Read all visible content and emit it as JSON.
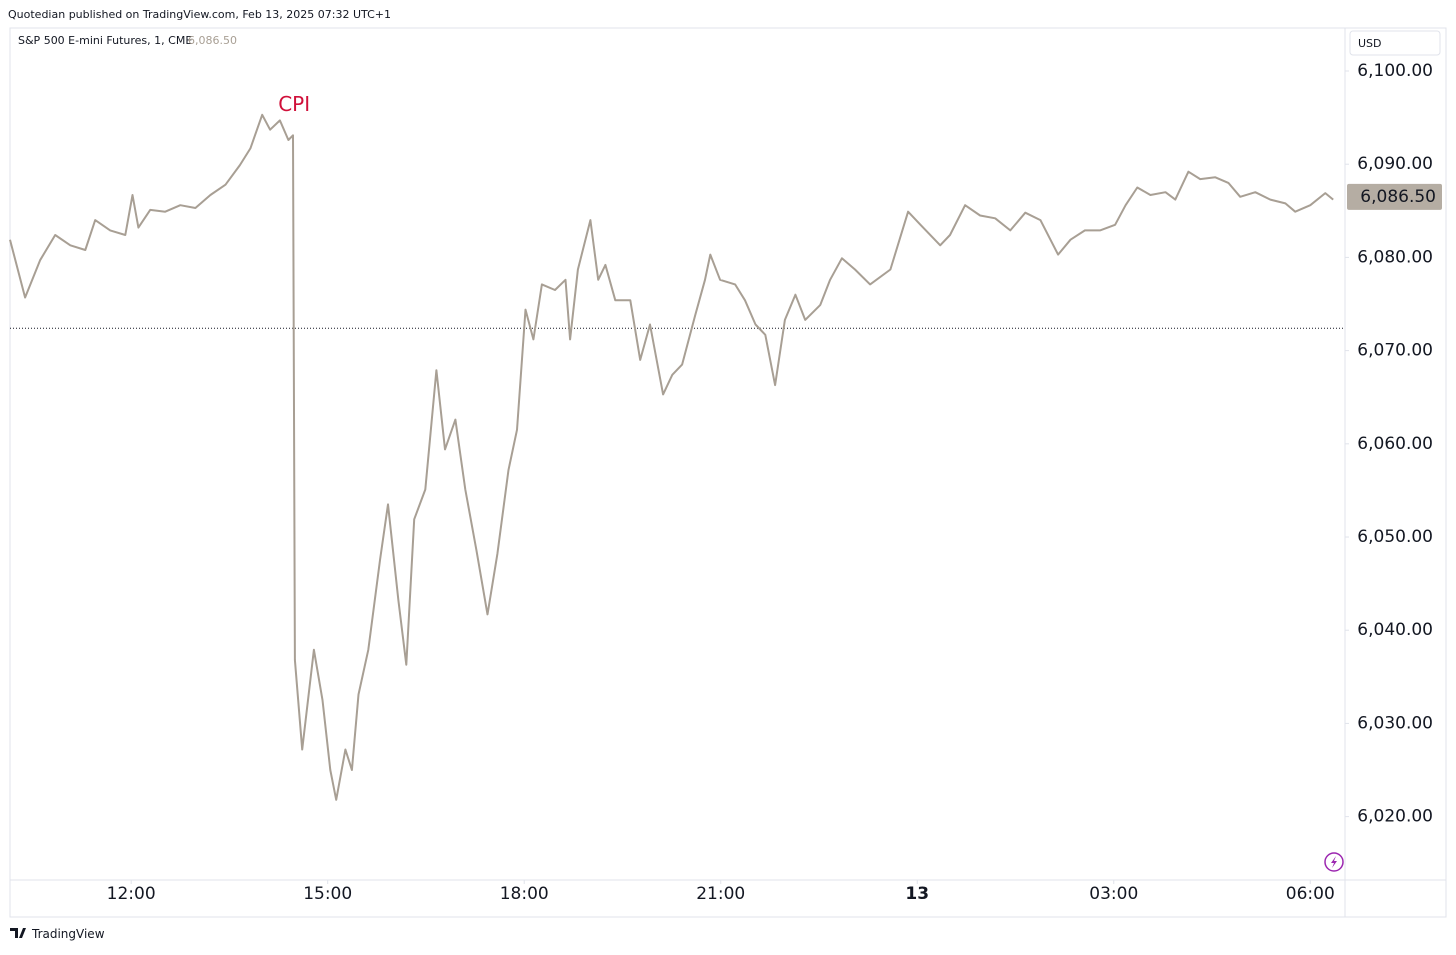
{
  "header": {
    "publisher": "Quotedian published on TradingView.com, Feb 13, 2025 07:32 UTC+1"
  },
  "footer": {
    "brand": "TradingView"
  },
  "chart_data": {
    "type": "line",
    "title": "S&P 500 E-mini Futures, 1, CME",
    "currency": "USD",
    "last_price": {
      "value": 6086.5,
      "label": "6,086.50"
    },
    "reference_line": 6072.4,
    "annotation": "CPI",
    "color": "#a89f94",
    "x": [
      10.15,
      10.38,
      10.61,
      10.84,
      11.07,
      11.3,
      11.45,
      11.68,
      11.91,
      12.02,
      12.11,
      12.29,
      12.52,
      12.75,
      12.98,
      13.21,
      13.44,
      13.66,
      13.82,
      14.0,
      14.12,
      14.27,
      14.4,
      14.47,
      14.5,
      14.61,
      14.79,
      14.92,
      15.04,
      15.13,
      15.27,
      15.37,
      15.47,
      15.62,
      15.8,
      15.92,
      16.08,
      16.2,
      16.32,
      16.49,
      16.66,
      16.79,
      16.95,
      17.1,
      17.27,
      17.44,
      17.59,
      17.76,
      17.89,
      18.02,
      18.14,
      18.27,
      18.47,
      18.63,
      18.7,
      18.82,
      19.01,
      19.13,
      19.24,
      19.39,
      19.62,
      19.77,
      19.92,
      20.12,
      20.26,
      20.41,
      20.61,
      20.76,
      20.84,
      20.99,
      21.22,
      21.37,
      21.53,
      21.68,
      21.83,
      21.98,
      22.14,
      22.29,
      22.52,
      22.67,
      22.85,
      23.05,
      23.28,
      23.59,
      23.86,
      24.05,
      24.35,
      24.5,
      24.73,
      24.96,
      25.19,
      25.42,
      25.65,
      25.88,
      26.15,
      26.34,
      26.56,
      26.79,
      27.02,
      27.18,
      27.36,
      27.56,
      27.79,
      27.94,
      28.14,
      28.32,
      28.55,
      28.75,
      28.93,
      29.16,
      29.39,
      29.62,
      29.77,
      30.0,
      30.23,
      30.35
    ],
    "values": [
      6081.9,
      6075.7,
      6079.7,
      6082.4,
      6081.3,
      6080.8,
      6084.0,
      6082.9,
      6082.4,
      6086.7,
      6083.2,
      6085.1,
      6084.9,
      6085.6,
      6085.3,
      6086.7,
      6087.8,
      6089.9,
      6091.7,
      6095.3,
      6093.7,
      6094.7,
      6092.6,
      6093.1,
      6036.8,
      6027.2,
      6037.9,
      6032.5,
      6025.0,
      6021.8,
      6027.2,
      6025.0,
      6033.1,
      6037.9,
      6047.6,
      6053.5,
      6043.2,
      6036.3,
      6051.9,
      6055.1,
      6067.9,
      6059.4,
      6062.6,
      6055.1,
      6048.6,
      6041.7,
      6048.2,
      6057.2,
      6061.5,
      6074.4,
      6071.2,
      6077.1,
      6076.5,
      6077.6,
      6071.2,
      6078.7,
      6084.0,
      6077.6,
      6079.2,
      6075.4,
      6075.4,
      6069.0,
      6072.8,
      6065.3,
      6067.4,
      6068.5,
      6073.8,
      6077.6,
      6080.3,
      6077.6,
      6077.1,
      6075.4,
      6072.8,
      6071.7,
      6066.3,
      6073.3,
      6076.0,
      6073.3,
      6074.9,
      6077.6,
      6079.9,
      6078.7,
      6077.1,
      6078.7,
      6084.9,
      6083.5,
      6081.3,
      6082.4,
      6085.6,
      6084.5,
      6084.2,
      6082.9,
      6084.8,
      6084.0,
      6080.3,
      6081.9,
      6082.9,
      6082.9,
      6083.5,
      6085.6,
      6087.5,
      6086.7,
      6087.0,
      6086.2,
      6089.2,
      6088.4,
      6088.6,
      6088.0,
      6086.5,
      6087.0,
      6086.2,
      6085.8,
      6084.9,
      6085.6,
      6086.9,
      6086.2
    ],
    "xlim": [
      10.15,
      30.53
    ],
    "ylim": [
      6013.2,
      6104.4
    ],
    "xticks": [
      {
        "value": 12,
        "label": "12:00"
      },
      {
        "value": 15,
        "label": "15:00"
      },
      {
        "value": 18,
        "label": "18:00"
      },
      {
        "value": 21,
        "label": "21:00"
      },
      {
        "value": 24,
        "label": "13"
      },
      {
        "value": 27,
        "label": "03:00"
      },
      {
        "value": 30,
        "label": "06:00"
      }
    ],
    "yticks": [
      {
        "value": 6020,
        "label": "6,020.00"
      },
      {
        "value": 6030,
        "label": "6,030.00"
      },
      {
        "value": 6040,
        "label": "6,040.00"
      },
      {
        "value": 6050,
        "label": "6,050.00"
      },
      {
        "value": 6060,
        "label": "6,060.00"
      },
      {
        "value": 6070,
        "label": "6,070.00"
      },
      {
        "value": 6080,
        "label": "6,080.00"
      },
      {
        "value": 6090,
        "label": "6,090.00"
      },
      {
        "value": 6100,
        "label": "6,100.00"
      }
    ],
    "grid": false
  }
}
